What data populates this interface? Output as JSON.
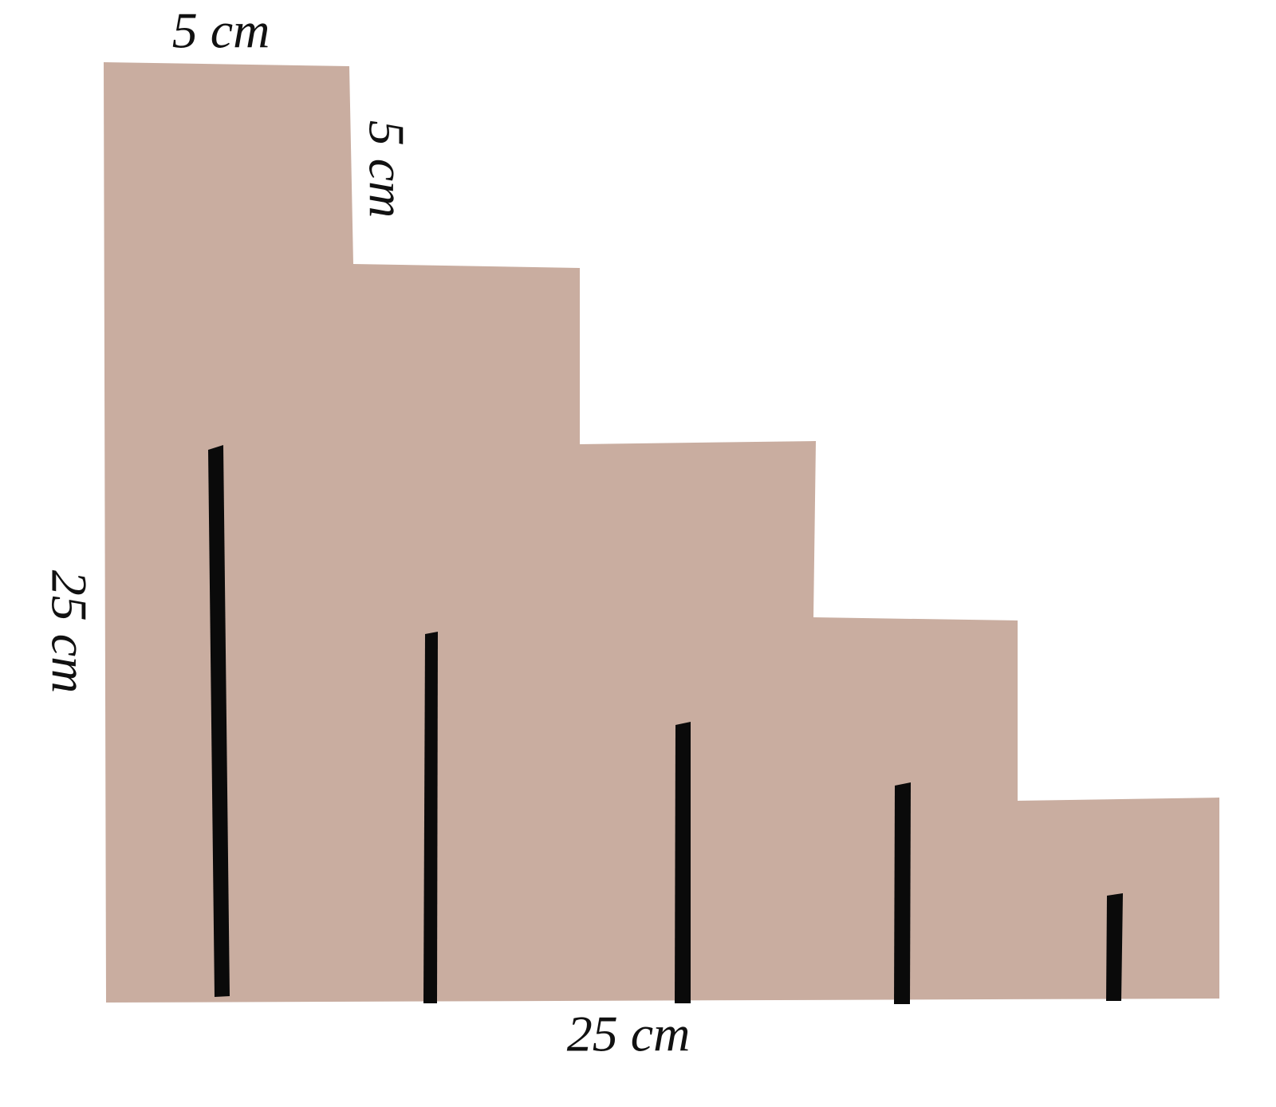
{
  "labels": {
    "top_width": "5 cm",
    "step_height": "5 cm",
    "total_height": "25 cm",
    "total_width": "25 cm"
  }
}
